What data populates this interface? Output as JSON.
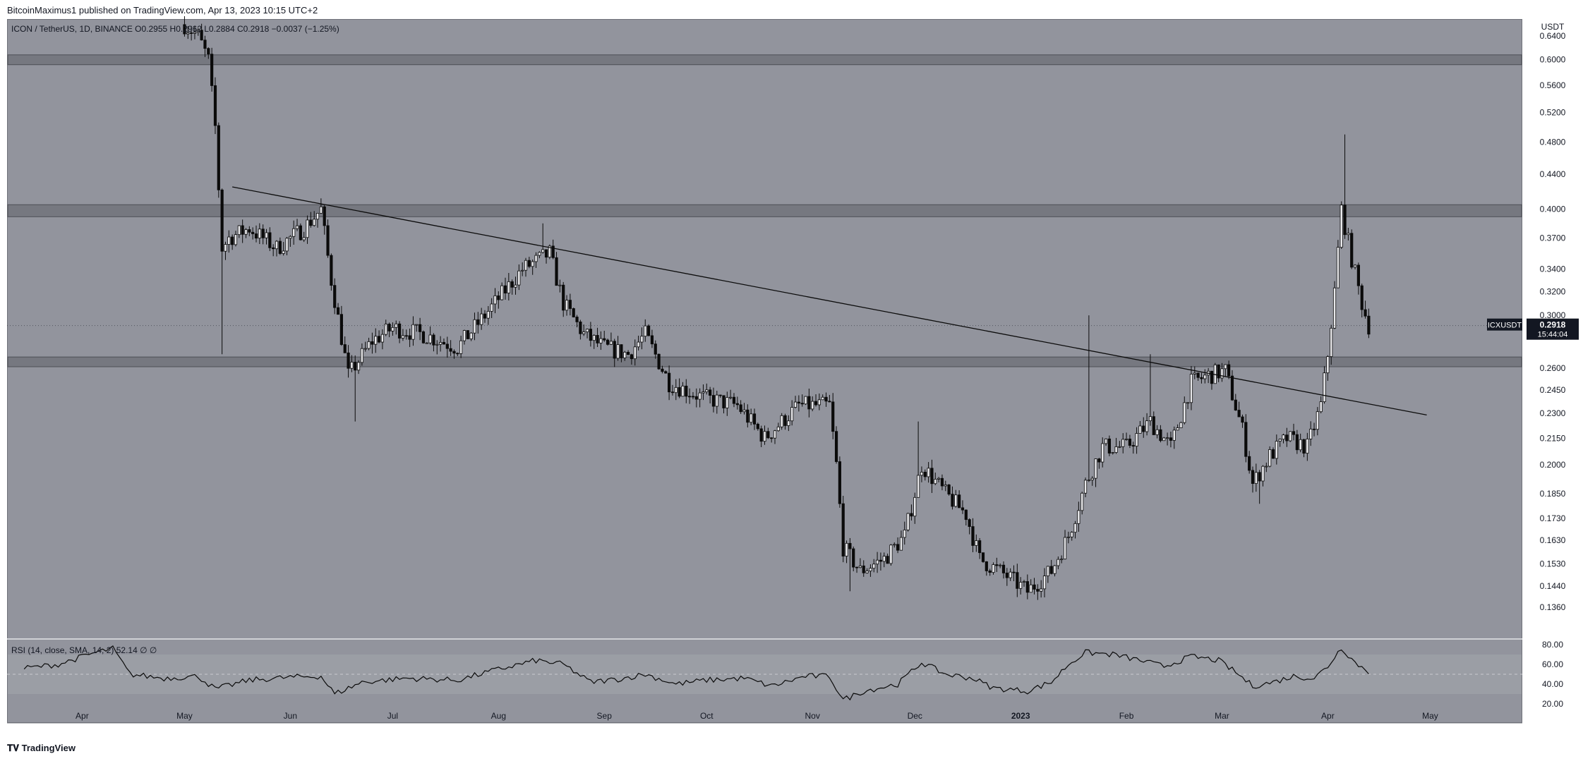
{
  "header": {
    "publish_line": "BitcoinMaximus1 published on TradingView.com, Apr 13, 2023 10:15 UTC+2"
  },
  "legend": {
    "text": "ICON / TetherUS, 1D, BINANCE  O0.2955  H0.2962  L0.2884  C0.2918  −0.0037 (−1.25%)"
  },
  "rsi_legend": {
    "text": "RSI (14, close, SMA, 14, 2)  52.14  ∅  ∅"
  },
  "price_scale": {
    "currency": "USDT"
  },
  "last_price": {
    "symbol": "ICXUSDT",
    "price": "0.2918",
    "countdown": "15:44:04"
  },
  "footer": {
    "brand": "TradingView"
  },
  "colors": {
    "background": "#92949d",
    "candle": "#0b0b0b",
    "zone": "#5f6168",
    "trendline": "#0b0b0b",
    "rsi_band": "#9ea0a8"
  },
  "chart_data": [
    {
      "type": "candlestick",
      "title": "ICON / TetherUS, 1D, BINANCE",
      "ylabel": "USDT",
      "log_scale": true,
      "y_ticks": [
        0.136,
        0.144,
        0.153,
        0.163,
        0.173,
        0.185,
        0.2,
        0.215,
        0.23,
        0.245,
        0.26,
        0.3,
        0.32,
        0.34,
        0.37,
        0.4,
        0.44,
        0.48,
        0.52,
        0.56,
        0.6,
        0.64
      ],
      "x_ticks": [
        "Apr",
        "May",
        "Jun",
        "Jul",
        "Aug",
        "Sep",
        "Oct",
        "Nov",
        "Dec",
        "2023",
        "Feb",
        "Mar",
        "Apr",
        "May"
      ],
      "ylim": [
        0.125,
        0.67
      ],
      "horizontal_zones": [
        {
          "low": 0.592,
          "high": 0.608
        },
        {
          "low": 0.392,
          "high": 0.405
        },
        {
          "low": 0.261,
          "high": 0.268
        }
      ],
      "trendline": {
        "start": {
          "date": "2022-05-15",
          "value": 0.425
        },
        "end": {
          "date": "2023-04-30",
          "value": 0.229
        }
      },
      "close_path": [
        [
          "2022-05-01",
          0.66
        ],
        [
          "2022-05-05",
          0.64
        ],
        [
          "2022-05-08",
          0.6
        ],
        [
          "2022-05-10",
          0.5
        ],
        [
          "2022-05-12",
          0.36
        ],
        [
          "2022-05-14",
          0.37
        ],
        [
          "2022-05-20",
          0.38
        ],
        [
          "2022-05-28",
          0.36
        ],
        [
          "2022-06-05",
          0.38
        ],
        [
          "2022-06-10",
          0.4
        ],
        [
          "2022-06-13",
          0.33
        ],
        [
          "2022-06-18",
          0.255
        ],
        [
          "2022-06-25",
          0.28
        ],
        [
          "2022-07-01",
          0.29
        ],
        [
          "2022-07-10",
          0.285
        ],
        [
          "2022-07-20",
          0.275
        ],
        [
          "2022-07-28",
          0.3
        ],
        [
          "2022-08-08",
          0.34
        ],
        [
          "2022-08-16",
          0.355
        ],
        [
          "2022-08-20",
          0.31
        ],
        [
          "2022-08-26",
          0.285
        ],
        [
          "2022-09-01",
          0.275
        ],
        [
          "2022-09-08",
          0.27
        ],
        [
          "2022-09-13",
          0.285
        ],
        [
          "2022-09-20",
          0.25
        ],
        [
          "2022-09-30",
          0.24
        ],
        [
          "2022-10-10",
          0.235
        ],
        [
          "2022-10-18",
          0.215
        ],
        [
          "2022-10-28",
          0.235
        ],
        [
          "2022-11-06",
          0.235
        ],
        [
          "2022-11-08",
          0.2
        ],
        [
          "2022-11-10",
          0.16
        ],
        [
          "2022-11-15",
          0.15
        ],
        [
          "2022-11-22",
          0.155
        ],
        [
          "2022-11-28",
          0.165
        ],
        [
          "2022-12-03",
          0.2
        ],
        [
          "2022-12-10",
          0.185
        ],
        [
          "2022-12-16",
          0.175
        ],
        [
          "2022-12-20",
          0.155
        ],
        [
          "2022-12-28",
          0.148
        ],
        [
          "2023-01-03",
          0.142
        ],
        [
          "2023-01-10",
          0.15
        ],
        [
          "2023-01-15",
          0.165
        ],
        [
          "2023-01-20",
          0.19
        ],
        [
          "2023-01-25",
          0.21
        ],
        [
          "2023-02-01",
          0.21
        ],
        [
          "2023-02-08",
          0.225
        ],
        [
          "2023-02-14",
          0.21
        ],
        [
          "2023-02-20",
          0.25
        ],
        [
          "2023-02-25",
          0.255
        ],
        [
          "2023-03-02",
          0.258
        ],
        [
          "2023-03-07",
          0.22
        ],
        [
          "2023-03-10",
          0.19
        ],
        [
          "2023-03-15",
          0.205
        ],
        [
          "2023-03-20",
          0.215
        ],
        [
          "2023-03-26",
          0.21
        ],
        [
          "2023-03-30",
          0.235
        ],
        [
          "2023-04-01",
          0.27
        ],
        [
          "2023-04-03",
          0.32
        ],
        [
          "2023-04-05",
          0.4
        ],
        [
          "2023-04-08",
          0.35
        ],
        [
          "2023-04-11",
          0.31
        ],
        [
          "2023-04-13",
          0.2918
        ]
      ],
      "wick_extremes": [
        [
          "2022-05-12",
          0.27
        ],
        [
          "2022-06-20",
          0.225
        ],
        [
          "2022-08-14",
          0.385
        ],
        [
          "2022-11-12",
          0.142
        ],
        [
          "2022-12-02",
          0.225
        ],
        [
          "2023-01-21",
          0.3
        ],
        [
          "2023-02-08",
          0.27
        ],
        [
          "2023-03-12",
          0.18
        ],
        [
          "2023-04-06",
          0.49
        ]
      ]
    },
    {
      "type": "line",
      "title": "RSI (14, close, SMA, 14, 2)",
      "ylim": [
        15,
        85
      ],
      "y_ticks": [
        20,
        40,
        60,
        80
      ],
      "band": [
        30,
        70
      ],
      "midline": 50,
      "points": [
        [
          "2022-03-15",
          56
        ],
        [
          "2022-03-25",
          60
        ],
        [
          "2022-04-05",
          72
        ],
        [
          "2022-04-10",
          76
        ],
        [
          "2022-04-15",
          50
        ],
        [
          "2022-04-25",
          46
        ],
        [
          "2022-05-05",
          48
        ],
        [
          "2022-05-10",
          35
        ],
        [
          "2022-05-20",
          44
        ],
        [
          "2022-06-01",
          47
        ],
        [
          "2022-06-10",
          48
        ],
        [
          "2022-06-14",
          30
        ],
        [
          "2022-06-22",
          42
        ],
        [
          "2022-07-05",
          46
        ],
        [
          "2022-07-20",
          44
        ],
        [
          "2022-08-01",
          55
        ],
        [
          "2022-08-12",
          64
        ],
        [
          "2022-08-20",
          60
        ],
        [
          "2022-08-28",
          42
        ],
        [
          "2022-09-05",
          45
        ],
        [
          "2022-09-13",
          50
        ],
        [
          "2022-09-22",
          40
        ],
        [
          "2022-10-01",
          44
        ],
        [
          "2022-10-12",
          46
        ],
        [
          "2022-10-20",
          38
        ],
        [
          "2022-10-30",
          48
        ],
        [
          "2022-11-06",
          48
        ],
        [
          "2022-11-10",
          24
        ],
        [
          "2022-11-16",
          33
        ],
        [
          "2022-11-26",
          40
        ],
        [
          "2022-12-03",
          62
        ],
        [
          "2022-12-10",
          50
        ],
        [
          "2022-12-18",
          46
        ],
        [
          "2022-12-24",
          36
        ],
        [
          "2023-01-03",
          33
        ],
        [
          "2023-01-10",
          42
        ],
        [
          "2023-01-15",
          60
        ],
        [
          "2023-01-20",
          72
        ],
        [
          "2023-01-28",
          70
        ],
        [
          "2023-02-05",
          64
        ],
        [
          "2023-02-12",
          58
        ],
        [
          "2023-02-20",
          68
        ],
        [
          "2023-02-28",
          64
        ],
        [
          "2023-03-05",
          52
        ],
        [
          "2023-03-10",
          38
        ],
        [
          "2023-03-16",
          42
        ],
        [
          "2023-03-22",
          48
        ],
        [
          "2023-03-28",
          46
        ],
        [
          "2023-04-01",
          58
        ],
        [
          "2023-04-05",
          77
        ],
        [
          "2023-04-09",
          62
        ],
        [
          "2023-04-13",
          52.14
        ]
      ]
    }
  ]
}
